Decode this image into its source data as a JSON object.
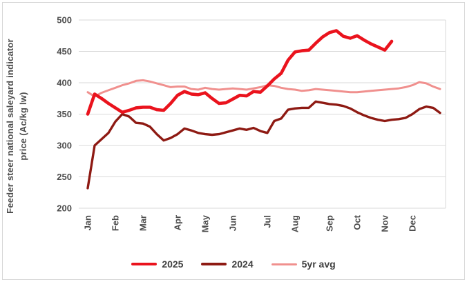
{
  "chart_data": {
    "type": "line",
    "title": "",
    "ylabel_line1": "Feeder steer national saleyard indicator",
    "ylabel_line2": "price (Ac/kg lw)",
    "ylim": [
      200,
      500
    ],
    "yticks": [
      500,
      450,
      400,
      350,
      300,
      250,
      200
    ],
    "grid": "horizontal",
    "gridline_color": "#d9d9d9",
    "axis_text_color": "#4d4d4d",
    "legend_position": "bottom",
    "x_unit": "week",
    "month_labels": [
      {
        "label": "Jan",
        "week": 1
      },
      {
        "label": "Feb",
        "week": 5
      },
      {
        "label": "Mar",
        "week": 9
      },
      {
        "label": "Apr",
        "week": 14
      },
      {
        "label": "May",
        "week": 18
      },
      {
        "label": "Jun",
        "week": 22
      },
      {
        "label": "Jul",
        "week": 27
      },
      {
        "label": "Aug",
        "week": 31
      },
      {
        "label": "Sep",
        "week": 36
      },
      {
        "label": "Oct",
        "week": 40
      },
      {
        "label": "Nov",
        "week": 44
      },
      {
        "label": "Dec",
        "week": 48
      }
    ],
    "series": [
      {
        "name": "5yr avg",
        "color": "#f0908e",
        "line_width": 3,
        "start_week": 1,
        "values": [
          385,
          378,
          384,
          388,
          392,
          396,
          399,
          403,
          404,
          402,
          399,
          396,
          393,
          394,
          394,
          390,
          389,
          392,
          390,
          389,
          390,
          391,
          390,
          389,
          391,
          393,
          396,
          395,
          392,
          390,
          389,
          387,
          388,
          390,
          389,
          388,
          387,
          386,
          385,
          385,
          386,
          387,
          388,
          389,
          390,
          391,
          393,
          396,
          401,
          399,
          394,
          390
        ]
      },
      {
        "name": "2024",
        "color": "#8e1a13",
        "line_width": 3.4,
        "start_week": 1,
        "values": [
          232,
          300,
          310,
          320,
          338,
          350,
          346,
          336,
          335,
          330,
          318,
          308,
          312,
          318,
          327,
          324,
          320,
          318,
          317,
          318,
          321,
          324,
          327,
          325,
          328,
          323,
          320,
          339,
          343,
          357,
          359,
          360,
          360,
          370,
          368,
          366,
          365,
          363,
          359,
          353,
          348,
          344,
          341,
          339,
          341,
          342,
          344,
          350,
          358,
          362,
          360,
          352
        ]
      },
      {
        "name": "2025",
        "color": "#ea131d",
        "line_width": 4.6,
        "start_week": 1,
        "values": [
          350,
          382,
          375,
          367,
          360,
          353,
          356,
          360,
          361,
          361,
          357,
          356,
          367,
          380,
          386,
          382,
          381,
          384,
          375,
          367,
          368,
          374,
          380,
          379,
          386,
          385,
          395,
          406,
          415,
          436,
          449,
          451,
          452,
          463,
          473,
          480,
          483,
          474,
          471,
          475,
          468,
          462,
          457,
          452,
          466
        ]
      }
    ],
    "legend_order": [
      2,
      1,
      0
    ]
  }
}
